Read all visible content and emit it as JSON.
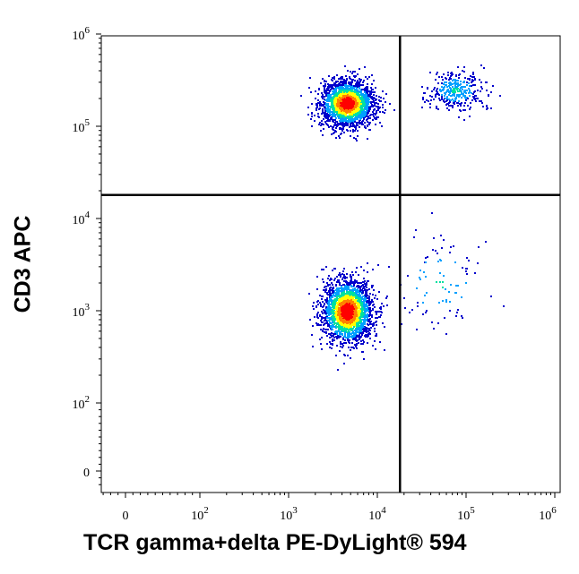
{
  "chart_data": {
    "type": "scatter",
    "style": "flow cytometry density dot plot with quadrant gates",
    "xlabel": "TCR gamma+delta PE-DyLight® 594",
    "ylabel": "CD3 APC",
    "x_scale": "biexponential",
    "y_scale": "biexponential",
    "x_ticks": [
      {
        "value": 0,
        "label": "0"
      },
      {
        "value": 100,
        "label": "10^2"
      },
      {
        "value": 1000,
        "label": "10^3"
      },
      {
        "value": 10000,
        "label": "10^4"
      },
      {
        "value": 100000,
        "label": "10^5"
      },
      {
        "value": 1000000,
        "label": "10^6"
      }
    ],
    "y_ticks": [
      {
        "value": 0,
        "label": "0"
      },
      {
        "value": 100,
        "label": "10^2"
      },
      {
        "value": 1000,
        "label": "10^3"
      },
      {
        "value": 10000,
        "label": "10^4"
      },
      {
        "value": 100000,
        "label": "10^5"
      },
      {
        "value": 1000000,
        "label": "10^6"
      }
    ],
    "gates": {
      "x_threshold": 18000,
      "y_threshold": 18000
    },
    "populations": [
      {
        "quadrant": "upper-left",
        "center_x": 4500,
        "center_y": 180000,
        "density": "high"
      },
      {
        "quadrant": "lower-left",
        "center_x": 4500,
        "center_y": 1000,
        "density": "high"
      },
      {
        "quadrant": "upper-right",
        "center_x": 75000,
        "center_y": 250000,
        "density": "low"
      },
      {
        "quadrant": "lower-right",
        "center_x": 50000,
        "center_y": 2000,
        "density": "very low"
      }
    ],
    "color_scale": [
      "#0000cc",
      "#00a0ff",
      "#00e0a0",
      "#ffff00",
      "#ff8000",
      "#ff0000"
    ],
    "grid": false,
    "legend": "none"
  }
}
